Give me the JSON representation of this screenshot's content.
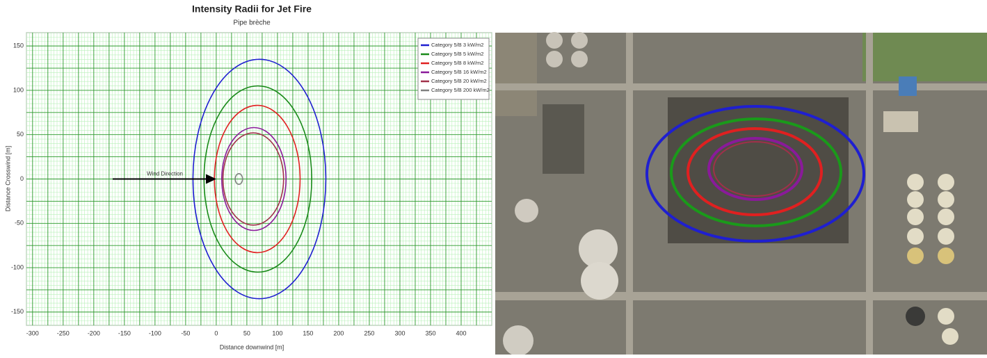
{
  "chart_data": {
    "type": "ellipse",
    "title": "Intensity Radii for Jet Fire",
    "subtitle": "Pipe brèche",
    "x_label": "Distance downwind [m]",
    "y_label": "Distance Crosswind [m]",
    "annotation": "Wind Direction",
    "xlim": [
      -310,
      450
    ],
    "ylim": [
      -165,
      165
    ],
    "xticks": [
      -300,
      -250,
      -200,
      -150,
      -100,
      -50,
      0,
      50,
      100,
      150,
      200,
      250,
      300,
      350,
      400
    ],
    "yticks": [
      -150,
      -100,
      -50,
      0,
      50,
      100,
      150
    ],
    "grid": true,
    "legend": "upper right",
    "series": [
      {
        "name": "Category 5/B 3 kW/m2",
        "color": "#1f1fd0",
        "downwind": [
          -38,
          179
        ],
        "crosswind": [
          -135,
          135
        ]
      },
      {
        "name": "Category 5/B 5 kW/m2",
        "color": "#1a8a1a",
        "downwind": [
          -20,
          156
        ],
        "crosswind": [
          -105,
          105
        ]
      },
      {
        "name": "Category 5/B 8 kW/m2",
        "color": "#e02020",
        "downwind": [
          -3,
          137
        ],
        "crosswind": [
          -83,
          83
        ]
      },
      {
        "name": "Category 5/B 16 kW/m2",
        "color": "#8a1a9a",
        "downwind": [
          9,
          114
        ],
        "crosswind": [
          -58,
          58
        ]
      },
      {
        "name": "Category 5/B 20 kW/m2",
        "color": "#a0304a",
        "downwind": [
          11,
          110
        ],
        "crosswind": [
          -52,
          52
        ]
      },
      {
        "name": "Category 5/B 200 kW/m2",
        "color": "#808080",
        "downwind": [
          31,
          43
        ],
        "crosswind": [
          -6,
          6
        ]
      }
    ]
  }
}
